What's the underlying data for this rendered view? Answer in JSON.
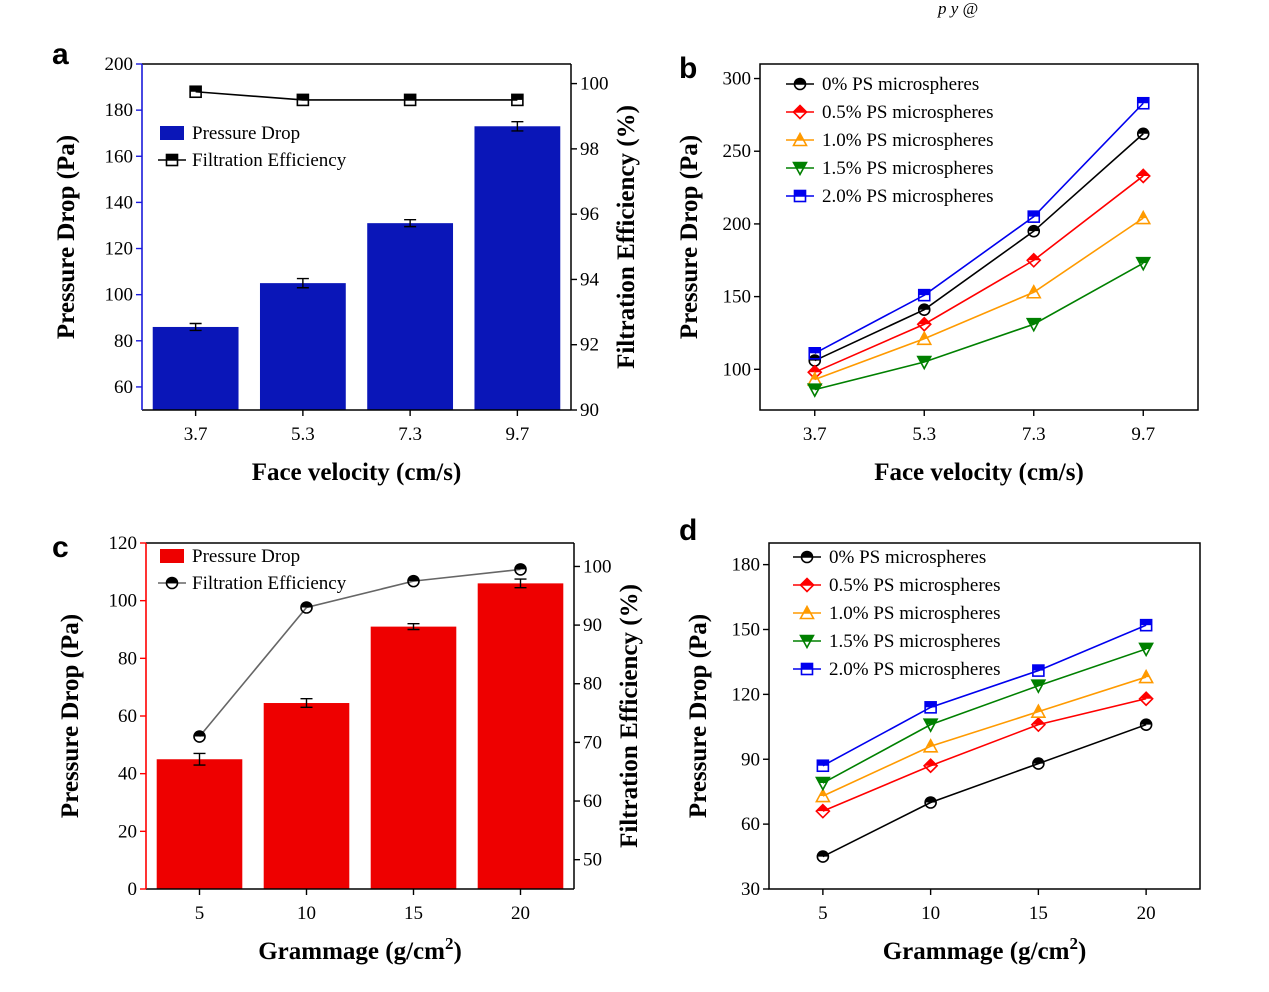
{
  "header": {
    "fragment": "p                y              @"
  },
  "chart_data": [
    {
      "panel": "a",
      "type": "bar+line",
      "xlabel": "Face velocity (cm/s)",
      "ylabel_left": "Pressure Drop (Pa)",
      "ylabel_right": "Filtration Efficiency (%)",
      "categories": [
        "3.7",
        "5.3",
        "7.3",
        "9.7"
      ],
      "left_ylim": [
        50,
        200
      ],
      "left_ticks": [
        60,
        80,
        100,
        120,
        140,
        160,
        180,
        200
      ],
      "right_ylim": [
        90,
        100.6
      ],
      "right_ticks": [
        90,
        92,
        94,
        96,
        98,
        100
      ],
      "left_color": "#1a1adb",
      "bar_color": "#0a16b8",
      "series": [
        {
          "name": "Pressure Drop",
          "kind": "bar",
          "axis": "left",
          "values": [
            86,
            105,
            131,
            173
          ],
          "errors": [
            1.5,
            2,
            1.5,
            2
          ]
        },
        {
          "name": "Filtration Efficiency",
          "kind": "line",
          "axis": "right",
          "values": [
            99.75,
            99.5,
            99.5,
            99.5
          ],
          "color": "#000000"
        }
      ],
      "legend": [
        "Pressure Drop",
        "Filtration Efficiency"
      ]
    },
    {
      "panel": "b",
      "type": "line",
      "xlabel": "Face velocity (cm/s)",
      "ylabel": "Pressure Drop (Pa)",
      "categories": [
        "3.7",
        "5.3",
        "7.3",
        "9.7"
      ],
      "ylim": [
        72,
        310
      ],
      "yticks": [
        100,
        150,
        200,
        250,
        300
      ],
      "series": [
        {
          "name": "0% PS microspheres",
          "marker": "circle",
          "color": "#000000",
          "values": [
            106,
            141,
            195,
            262
          ]
        },
        {
          "name": "0.5% PS microspheres",
          "marker": "diamond",
          "color": "#ff0000",
          "values": [
            98,
            131,
            175,
            233
          ]
        },
        {
          "name": "1.0% PS microspheres",
          "marker": "triangle-up",
          "color": "#ff9a00",
          "values": [
            93,
            121,
            153,
            204
          ]
        },
        {
          "name": "1.5% PS microspheres",
          "marker": "triangle-down",
          "color": "#008000",
          "values": [
            86,
            105,
            131,
            173
          ]
        },
        {
          "name": "2.0% PS microspheres",
          "marker": "square",
          "color": "#0000ee",
          "values": [
            111,
            151,
            205,
            283
          ]
        }
      ]
    },
    {
      "panel": "c",
      "type": "bar+line",
      "xlabel": "Grammage (g/cm",
      "xlabel_sup": "2",
      "xlabel_end": ")",
      "ylabel_left": "Pressure Drop (Pa)",
      "ylabel_right": "Filtration Efficiency (%)",
      "categories": [
        "5",
        "10",
        "15",
        "20"
      ],
      "left_ylim": [
        0,
        120
      ],
      "left_ticks": [
        0,
        20,
        40,
        60,
        80,
        100,
        120
      ],
      "right_ylim": [
        45,
        104
      ],
      "right_ticks": [
        50,
        60,
        70,
        80,
        90,
        100
      ],
      "left_color": "#ff0000",
      "bar_color": "#ee0000",
      "series": [
        {
          "name": "Pressure Drop",
          "kind": "bar",
          "axis": "left",
          "values": [
            45,
            64.5,
            91,
            106
          ],
          "errors": [
            2,
            1.5,
            1,
            1.5
          ]
        },
        {
          "name": "Filtration Efficiency",
          "kind": "line",
          "axis": "right",
          "values": [
            71,
            93,
            97.5,
            99.5
          ],
          "color": "#666666"
        }
      ],
      "legend": [
        "Pressure Drop",
        "Filtration Efficiency"
      ]
    },
    {
      "panel": "d",
      "type": "line",
      "xlabel": "Grammage (g/cm",
      "xlabel_sup": "2",
      "xlabel_end": ")",
      "ylabel": "Pressure Drop (Pa)",
      "categories": [
        "5",
        "10",
        "15",
        "20"
      ],
      "ylim": [
        30,
        190
      ],
      "yticks": [
        30,
        60,
        90,
        120,
        150,
        180
      ],
      "series": [
        {
          "name": "0% PS microspheres",
          "marker": "circle",
          "color": "#000000",
          "values": [
            45,
            70,
            88,
            106
          ]
        },
        {
          "name": "0.5% PS microspheres",
          "marker": "diamond",
          "color": "#ff0000",
          "values": [
            66,
            87,
            106,
            118
          ]
        },
        {
          "name": "1.0% PS microspheres",
          "marker": "triangle-up",
          "color": "#ff9a00",
          "values": [
            73,
            96,
            112,
            128
          ]
        },
        {
          "name": "1.5% PS microspheres",
          "marker": "triangle-down",
          "color": "#008000",
          "values": [
            79,
            106,
            124,
            141
          ]
        },
        {
          "name": "2.0% PS microspheres",
          "marker": "square",
          "color": "#0000ee",
          "values": [
            87,
            114,
            131,
            152
          ]
        }
      ]
    }
  ]
}
